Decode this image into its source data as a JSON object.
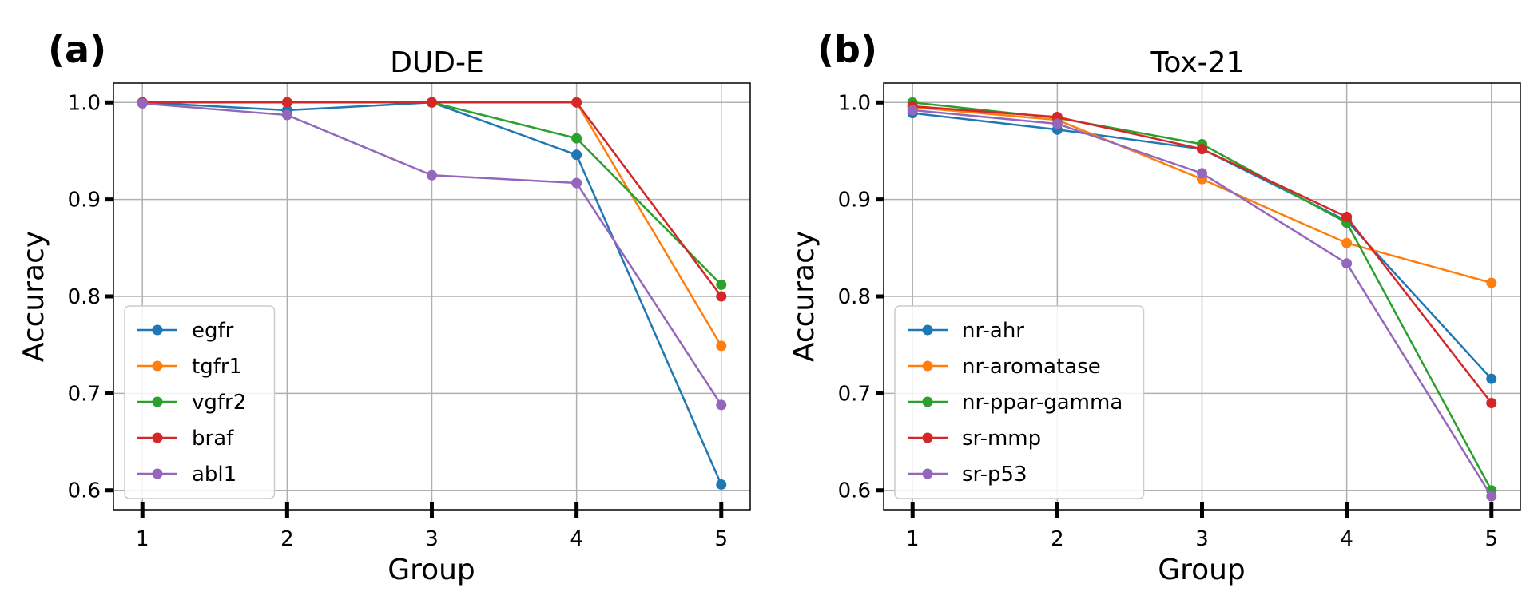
{
  "panels": [
    {
      "label": "(a)"
    },
    {
      "label": "(b)"
    }
  ],
  "chart_data": [
    {
      "type": "line",
      "title": "DUD-E",
      "xlabel": "Group",
      "ylabel": "Accuracy",
      "x": [
        1,
        2,
        3,
        4,
        5
      ],
      "x_ticks": [
        "1",
        "2",
        "3",
        "4",
        "5"
      ],
      "y_ticks": [
        "0.6",
        "0.7",
        "0.8",
        "0.9",
        "1.0"
      ],
      "xlim": [
        0.8,
        5.2
      ],
      "ylim": [
        0.58,
        1.02
      ],
      "grid": true,
      "legend_position": "lower-left",
      "series": [
        {
          "name": "egfr",
          "color": "#1f77b4",
          "values": [
            1.0,
            0.992,
            1.0,
            0.946,
            0.606
          ]
        },
        {
          "name": "tgfr1",
          "color": "#ff7f0e",
          "values": [
            1.0,
            1.0,
            1.0,
            1.0,
            0.749
          ]
        },
        {
          "name": "vgfr2",
          "color": "#2ca02c",
          "values": [
            1.0,
            1.0,
            1.0,
            0.963,
            0.812
          ]
        },
        {
          "name": "braf",
          "color": "#d62728",
          "values": [
            1.0,
            1.0,
            1.0,
            1.0,
            0.8
          ]
        },
        {
          "name": "abl1",
          "color": "#9467bd",
          "values": [
            0.999,
            0.987,
            0.925,
            0.917,
            0.688
          ]
        }
      ]
    },
    {
      "type": "line",
      "title": "Tox-21",
      "xlabel": "Group",
      "ylabel": "Accuracy",
      "x": [
        1,
        2,
        3,
        4,
        5
      ],
      "x_ticks": [
        "1",
        "2",
        "3",
        "4",
        "5"
      ],
      "y_ticks": [
        "0.6",
        "0.7",
        "0.8",
        "0.9",
        "1.0"
      ],
      "xlim": [
        0.8,
        5.2
      ],
      "ylim": [
        0.58,
        1.02
      ],
      "grid": true,
      "legend_position": "lower-left",
      "series": [
        {
          "name": "nr-ahr",
          "color": "#1f77b4",
          "values": [
            0.989,
            0.972,
            0.952,
            0.878,
            0.715
          ]
        },
        {
          "name": "nr-aromatase",
          "color": "#ff7f0e",
          "values": [
            0.995,
            0.982,
            0.921,
            0.855,
            0.814
          ]
        },
        {
          "name": "nr-ppar-gamma",
          "color": "#2ca02c",
          "values": [
            1.0,
            0.984,
            0.957,
            0.876,
            0.6
          ]
        },
        {
          "name": "sr-mmp",
          "color": "#d62728",
          "values": [
            0.996,
            0.985,
            0.952,
            0.882,
            0.69
          ]
        },
        {
          "name": "sr-p53",
          "color": "#9467bd",
          "values": [
            0.992,
            0.978,
            0.927,
            0.834,
            0.594
          ]
        }
      ]
    }
  ]
}
